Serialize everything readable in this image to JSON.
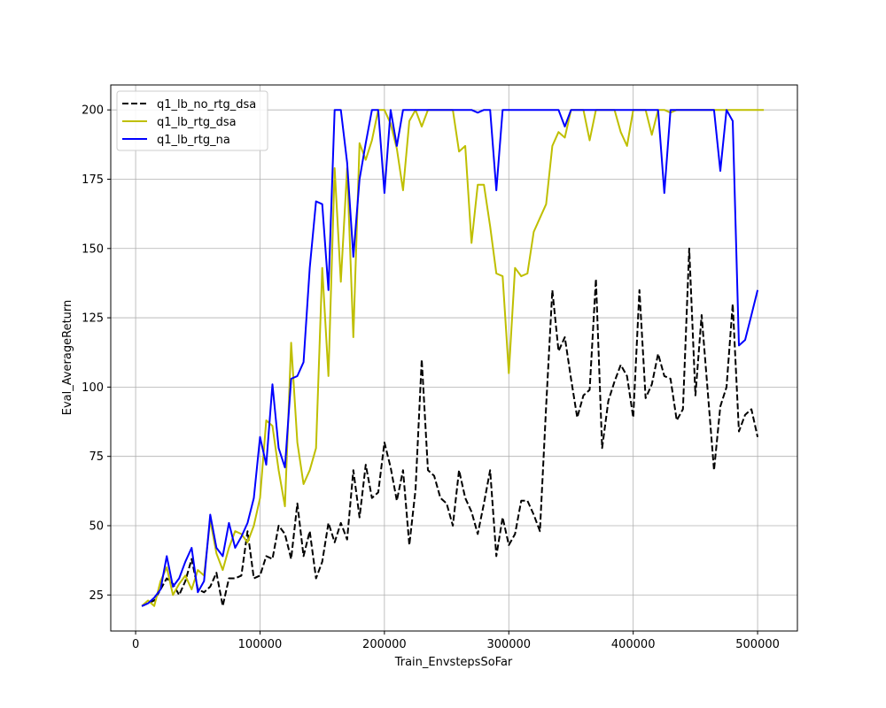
{
  "chart_data": {
    "type": "line",
    "xlabel": "Train_EnvstepsSoFar",
    "ylabel": "Eval_AverageReturn",
    "xlim": [
      -20000,
      532000
    ],
    "ylim": [
      12,
      209
    ],
    "xticks": [
      0,
      100000,
      200000,
      300000,
      400000,
      500000
    ],
    "xtick_labels": [
      "0",
      "100000",
      "200000",
      "300000",
      "400000",
      "500000"
    ],
    "yticks": [
      25,
      50,
      75,
      100,
      125,
      150,
      175,
      200
    ],
    "ytick_labels": [
      "25",
      "50",
      "75",
      "100",
      "125",
      "150",
      "175",
      "200"
    ],
    "grid": true,
    "legend": "top-left",
    "series": [
      {
        "name": "q1_lb_no_rtg_dsa",
        "color": "#000000",
        "dash": "dashed",
        "points": [
          [
            5000,
            21
          ],
          [
            10000,
            22
          ],
          [
            15000,
            23
          ],
          [
            20000,
            27
          ],
          [
            25000,
            31
          ],
          [
            30000,
            29
          ],
          [
            35000,
            25
          ],
          [
            40000,
            30
          ],
          [
            45000,
            38
          ],
          [
            50000,
            27
          ],
          [
            55000,
            26
          ],
          [
            60000,
            28
          ],
          [
            65000,
            33
          ],
          [
            70000,
            21
          ],
          [
            75000,
            31
          ],
          [
            80000,
            31
          ],
          [
            85000,
            32
          ],
          [
            90000,
            48
          ],
          [
            95000,
            31
          ],
          [
            100000,
            32
          ],
          [
            105000,
            39
          ],
          [
            110000,
            38
          ],
          [
            115000,
            50
          ],
          [
            120000,
            47
          ],
          [
            125000,
            38
          ],
          [
            130000,
            58
          ],
          [
            135000,
            39
          ],
          [
            140000,
            48
          ],
          [
            145000,
            31
          ],
          [
            150000,
            37
          ],
          [
            155000,
            51
          ],
          [
            160000,
            44
          ],
          [
            165000,
            51
          ],
          [
            170000,
            45
          ],
          [
            175000,
            70
          ],
          [
            180000,
            53
          ],
          [
            185000,
            72
          ],
          [
            190000,
            60
          ],
          [
            195000,
            62
          ],
          [
            200000,
            80
          ],
          [
            205000,
            71
          ],
          [
            210000,
            59
          ],
          [
            215000,
            70
          ],
          [
            220000,
            43
          ],
          [
            225000,
            63
          ],
          [
            230000,
            110
          ],
          [
            235000,
            70
          ],
          [
            240000,
            68
          ],
          [
            245000,
            60
          ],
          [
            250000,
            58
          ],
          [
            255000,
            50
          ],
          [
            260000,
            70
          ],
          [
            265000,
            60
          ],
          [
            270000,
            55
          ],
          [
            275000,
            47
          ],
          [
            280000,
            58
          ],
          [
            285000,
            70
          ],
          [
            290000,
            39
          ],
          [
            295000,
            53
          ],
          [
            300000,
            43
          ],
          [
            305000,
            47
          ],
          [
            310000,
            59
          ],
          [
            315000,
            59
          ],
          [
            320000,
            54
          ],
          [
            325000,
            48
          ],
          [
            330000,
            93
          ],
          [
            335000,
            135
          ],
          [
            340000,
            113
          ],
          [
            345000,
            118
          ],
          [
            350000,
            103
          ],
          [
            355000,
            89
          ],
          [
            360000,
            97
          ],
          [
            365000,
            99
          ],
          [
            370000,
            139
          ],
          [
            375000,
            78
          ],
          [
            380000,
            95
          ],
          [
            385000,
            102
          ],
          [
            390000,
            108
          ],
          [
            395000,
            104
          ],
          [
            400000,
            89
          ],
          [
            405000,
            135
          ],
          [
            410000,
            96
          ],
          [
            415000,
            101
          ],
          [
            420000,
            112
          ],
          [
            425000,
            104
          ],
          [
            430000,
            103
          ],
          [
            435000,
            88
          ],
          [
            440000,
            92
          ],
          [
            445000,
            150
          ],
          [
            450000,
            97
          ],
          [
            455000,
            126
          ],
          [
            460000,
            98
          ],
          [
            465000,
            70
          ],
          [
            470000,
            93
          ],
          [
            475000,
            100
          ],
          [
            480000,
            130
          ],
          [
            485000,
            84
          ],
          [
            490000,
            90
          ],
          [
            495000,
            92
          ],
          [
            500000,
            82
          ]
        ]
      },
      {
        "name": "q1_lb_rtg_dsa",
        "color": "#bfbf00",
        "dash": "solid",
        "points": [
          [
            5000,
            21
          ],
          [
            10000,
            23
          ],
          [
            15000,
            21
          ],
          [
            20000,
            30
          ],
          [
            25000,
            35
          ],
          [
            30000,
            25
          ],
          [
            35000,
            29
          ],
          [
            40000,
            32
          ],
          [
            45000,
            27
          ],
          [
            50000,
            34
          ],
          [
            55000,
            32
          ],
          [
            60000,
            52
          ],
          [
            65000,
            40
          ],
          [
            70000,
            34
          ],
          [
            75000,
            42
          ],
          [
            80000,
            48
          ],
          [
            85000,
            47
          ],
          [
            90000,
            44
          ],
          [
            95000,
            50
          ],
          [
            100000,
            60
          ],
          [
            105000,
            88
          ],
          [
            110000,
            86
          ],
          [
            115000,
            70
          ],
          [
            120000,
            57
          ],
          [
            125000,
            116
          ],
          [
            130000,
            80
          ],
          [
            135000,
            65
          ],
          [
            140000,
            70
          ],
          [
            145000,
            78
          ],
          [
            150000,
            143
          ],
          [
            155000,
            104
          ],
          [
            160000,
            179
          ],
          [
            165000,
            138
          ],
          [
            170000,
            179
          ],
          [
            175000,
            118
          ],
          [
            180000,
            188
          ],
          [
            185000,
            182
          ],
          [
            190000,
            189
          ],
          [
            195000,
            200
          ],
          [
            200000,
            200
          ],
          [
            205000,
            195
          ],
          [
            210000,
            186
          ],
          [
            215000,
            171
          ],
          [
            220000,
            196
          ],
          [
            225000,
            200
          ],
          [
            230000,
            194
          ],
          [
            235000,
            200
          ],
          [
            240000,
            200
          ],
          [
            245000,
            200
          ],
          [
            250000,
            200
          ],
          [
            255000,
            200
          ],
          [
            260000,
            185
          ],
          [
            265000,
            187
          ],
          [
            270000,
            152
          ],
          [
            275000,
            173
          ],
          [
            280000,
            173
          ],
          [
            285000,
            158
          ],
          [
            290000,
            141
          ],
          [
            295000,
            140
          ],
          [
            300000,
            105
          ],
          [
            305000,
            143
          ],
          [
            310000,
            140
          ],
          [
            315000,
            141
          ],
          [
            320000,
            156
          ],
          [
            325000,
            161
          ],
          [
            330000,
            166
          ],
          [
            335000,
            187
          ],
          [
            340000,
            192
          ],
          [
            345000,
            190
          ],
          [
            350000,
            200
          ],
          [
            355000,
            200
          ],
          [
            360000,
            200
          ],
          [
            365000,
            189
          ],
          [
            370000,
            200
          ],
          [
            375000,
            200
          ],
          [
            380000,
            200
          ],
          [
            385000,
            200
          ],
          [
            390000,
            192
          ],
          [
            395000,
            187
          ],
          [
            400000,
            200
          ],
          [
            405000,
            200
          ],
          [
            410000,
            200
          ],
          [
            415000,
            191
          ],
          [
            420000,
            200
          ],
          [
            425000,
            200
          ],
          [
            430000,
            199
          ],
          [
            435000,
            200
          ],
          [
            440000,
            200
          ],
          [
            445000,
            200
          ],
          [
            450000,
            200
          ],
          [
            455000,
            200
          ],
          [
            460000,
            200
          ],
          [
            465000,
            200
          ],
          [
            470000,
            200
          ],
          [
            475000,
            200
          ],
          [
            480000,
            200
          ],
          [
            485000,
            200
          ],
          [
            490000,
            200
          ],
          [
            495000,
            200
          ],
          [
            500000,
            200
          ],
          [
            505000,
            200
          ]
        ]
      },
      {
        "name": "q1_lb_rtg_na",
        "color": "#0000ff",
        "dash": "solid",
        "points": [
          [
            5000,
            21
          ],
          [
            10000,
            22
          ],
          [
            15000,
            24
          ],
          [
            20000,
            27
          ],
          [
            25000,
            39
          ],
          [
            30000,
            28
          ],
          [
            35000,
            31
          ],
          [
            40000,
            37
          ],
          [
            45000,
            42
          ],
          [
            50000,
            26
          ],
          [
            55000,
            30
          ],
          [
            60000,
            54
          ],
          [
            65000,
            42
          ],
          [
            70000,
            39
          ],
          [
            75000,
            51
          ],
          [
            80000,
            42
          ],
          [
            85000,
            46
          ],
          [
            90000,
            51
          ],
          [
            95000,
            60
          ],
          [
            100000,
            82
          ],
          [
            105000,
            72
          ],
          [
            110000,
            101
          ],
          [
            115000,
            78
          ],
          [
            120000,
            71
          ],
          [
            125000,
            103
          ],
          [
            130000,
            104
          ],
          [
            135000,
            109
          ],
          [
            140000,
            143
          ],
          [
            145000,
            167
          ],
          [
            150000,
            166
          ],
          [
            155000,
            135
          ],
          [
            160000,
            200
          ],
          [
            165000,
            200
          ],
          [
            170000,
            181
          ],
          [
            175000,
            147
          ],
          [
            180000,
            175
          ],
          [
            185000,
            188
          ],
          [
            190000,
            200
          ],
          [
            195000,
            200
          ],
          [
            200000,
            170
          ],
          [
            205000,
            200
          ],
          [
            210000,
            187
          ],
          [
            215000,
            200
          ],
          [
            220000,
            200
          ],
          [
            225000,
            200
          ],
          [
            230000,
            200
          ],
          [
            235000,
            200
          ],
          [
            240000,
            200
          ],
          [
            245000,
            200
          ],
          [
            250000,
            200
          ],
          [
            255000,
            200
          ],
          [
            260000,
            200
          ],
          [
            265000,
            200
          ],
          [
            270000,
            200
          ],
          [
            275000,
            199
          ],
          [
            280000,
            200
          ],
          [
            285000,
            200
          ],
          [
            290000,
            171
          ],
          [
            295000,
            200
          ],
          [
            300000,
            200
          ],
          [
            305000,
            200
          ],
          [
            310000,
            200
          ],
          [
            315000,
            200
          ],
          [
            320000,
            200
          ],
          [
            325000,
            200
          ],
          [
            330000,
            200
          ],
          [
            335000,
            200
          ],
          [
            340000,
            200
          ],
          [
            345000,
            194
          ],
          [
            350000,
            200
          ],
          [
            355000,
            200
          ],
          [
            360000,
            200
          ],
          [
            365000,
            200
          ],
          [
            370000,
            200
          ],
          [
            375000,
            200
          ],
          [
            380000,
            200
          ],
          [
            385000,
            200
          ],
          [
            390000,
            200
          ],
          [
            395000,
            200
          ],
          [
            400000,
            200
          ],
          [
            405000,
            200
          ],
          [
            410000,
            200
          ],
          [
            415000,
            200
          ],
          [
            420000,
            200
          ],
          [
            425000,
            170
          ],
          [
            430000,
            200
          ],
          [
            435000,
            200
          ],
          [
            440000,
            200
          ],
          [
            445000,
            200
          ],
          [
            450000,
            200
          ],
          [
            455000,
            200
          ],
          [
            460000,
            200
          ],
          [
            465000,
            200
          ],
          [
            470000,
            178
          ],
          [
            475000,
            200
          ],
          [
            480000,
            196
          ],
          [
            485000,
            115
          ],
          [
            490000,
            117
          ],
          [
            495000,
            126
          ],
          [
            500000,
            135
          ]
        ]
      }
    ]
  }
}
